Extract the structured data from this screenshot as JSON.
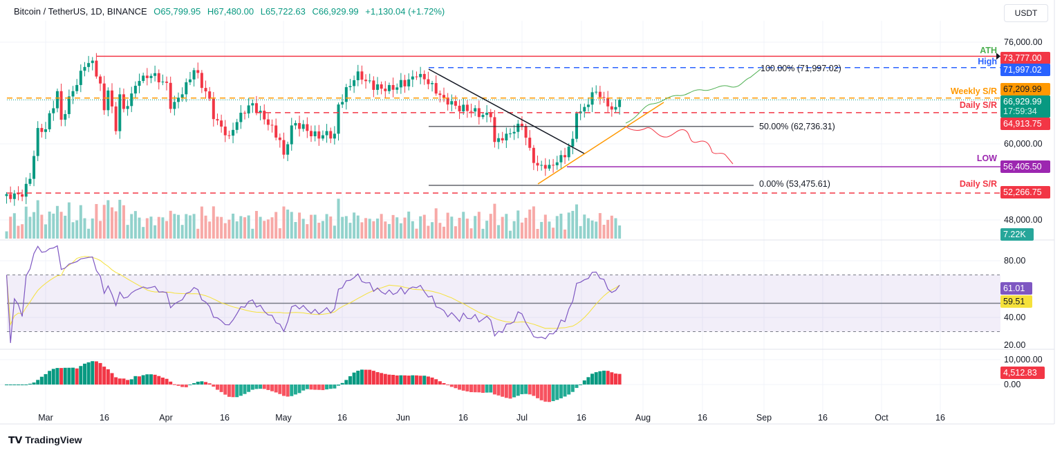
{
  "header": {
    "symbol": "Bitcoin / TetherUS, 1D, BINANCE",
    "open": "O65,799.95",
    "high": "H67,480.00",
    "low": "L65,722.63",
    "close": "C66,929.99",
    "change": "+1,130.04 (+1.72%)"
  },
  "currency_button": "USDT",
  "price_axis": {
    "ticks": [
      "76,000.00",
      "60,000.00",
      "48,000.00"
    ],
    "tags": [
      {
        "text": "73,777.00",
        "color": "#f23645"
      },
      {
        "text": "71,997.02",
        "color": "#2962ff"
      },
      {
        "text": "67,209.99",
        "color": "#ff9800"
      },
      {
        "text": "66,929.99",
        "color": "#089981",
        "sub": "17:59:34"
      },
      {
        "text": "64,913.75",
        "color": "#f23645"
      },
      {
        "text": "56,405.50",
        "color": "#9c27b0"
      },
      {
        "text": "52,266.75",
        "color": "#f23645"
      },
      {
        "text": "7.22K",
        "color": "#26a69a"
      }
    ]
  },
  "level_labels": {
    "ath": "ATH",
    "high": "High",
    "weekly": "Weekly S/R",
    "daily1": "Daily S/R",
    "low": "LOW",
    "daily2": "Daily S/R"
  },
  "fib_labels": {
    "f100": "100.00% (71,997.02)",
    "f50": "50.00% (62,736.31)",
    "f0": "0.00% (53,475.61)"
  },
  "rsi_axis": {
    "ticks": [
      "80.00",
      "40.00",
      "20.00"
    ],
    "rsi": "61.01",
    "rsi_ma": "59.51",
    "rsi_color": "#7e57c2",
    "ma_color": "#f5e13b"
  },
  "osc_axis": {
    "ticks": [
      "10,000.00",
      "0.00"
    ],
    "value": "4,512.83"
  },
  "time_axis": [
    "Mar",
    "16",
    "Apr",
    "16",
    "May",
    "16",
    "Jun",
    "16",
    "Jul",
    "16",
    "Aug",
    "16",
    "Sep",
    "16",
    "Oct",
    "16"
  ],
  "brand": "TradingView",
  "colors": {
    "up": "#089981",
    "down": "#f23645"
  },
  "chart_data": {
    "type": "candlestick",
    "symbol": "BTCUSDT",
    "interval": "1D",
    "ylim": [
      46000,
      78000
    ],
    "key_closes": [
      [
        "2024-02-20",
        52100
      ],
      [
        "2024-02-24",
        51700
      ],
      [
        "2024-02-26",
        54500
      ],
      [
        "2024-02-28",
        62500
      ],
      [
        "2024-03-01",
        62300
      ],
      [
        "2024-03-04",
        68300
      ],
      [
        "2024-03-05",
        63800
      ],
      [
        "2024-03-08",
        68300
      ],
      [
        "2024-03-11",
        72100
      ],
      [
        "2024-03-13",
        73100
      ],
      [
        "2024-03-15",
        69500
      ],
      [
        "2024-03-16",
        65300
      ],
      [
        "2024-03-17",
        68400
      ],
      [
        "2024-03-19",
        62000
      ],
      [
        "2024-03-20",
        67800
      ],
      [
        "2024-03-21",
        65500
      ],
      [
        "2024-03-25",
        69900
      ],
      [
        "2024-03-28",
        70700
      ],
      [
        "2024-04-01",
        69600
      ],
      [
        "2024-04-02",
        65500
      ],
      [
        "2024-04-05",
        67800
      ],
      [
        "2024-04-08",
        71600
      ],
      [
        "2024-04-12",
        67100
      ],
      [
        "2024-04-13",
        63900
      ],
      [
        "2024-04-17",
        61300
      ],
      [
        "2024-04-20",
        64900
      ],
      [
        "2024-04-23",
        66400
      ],
      [
        "2024-04-27",
        63000
      ],
      [
        "2024-04-30",
        60600
      ],
      [
        "2024-05-01",
        58300
      ],
      [
        "2024-05-03",
        62900
      ],
      [
        "2024-05-06",
        63100
      ],
      [
        "2024-05-08",
        61200
      ],
      [
        "2024-05-14",
        61600
      ],
      [
        "2024-05-15",
        66200
      ],
      [
        "2024-05-20",
        71400
      ],
      [
        "2024-05-21",
        70100
      ],
      [
        "2024-05-27",
        68300
      ],
      [
        "2024-06-04",
        70500
      ],
      [
        "2024-06-05",
        71000
      ],
      [
        "2024-06-07",
        69400
      ],
      [
        "2024-06-11",
        67300
      ],
      [
        "2024-06-14",
        66000
      ],
      [
        "2024-06-18",
        65100
      ],
      [
        "2024-06-23",
        64200
      ],
      [
        "2024-06-24",
        60300
      ],
      [
        "2024-06-27",
        61600
      ],
      [
        "2024-07-01",
        62800
      ],
      [
        "2024-07-04",
        57000
      ],
      [
        "2024-07-05",
        56600
      ],
      [
        "2024-07-08",
        56700
      ],
      [
        "2024-07-12",
        57900
      ],
      [
        "2024-07-14",
        60800
      ],
      [
        "2024-07-15",
        64800
      ],
      [
        "2024-07-16",
        65100
      ],
      [
        "2024-07-20",
        68200
      ],
      [
        "2024-07-23",
        65900
      ],
      [
        "2024-07-24",
        65400
      ],
      [
        "2024-07-25",
        65800
      ],
      [
        "2024-07-26",
        66930
      ]
    ],
    "levels": {
      "ath": 73777.0,
      "high": 71997.02,
      "weekly_sr": 67209.99,
      "daily_sr_upper": 64913.75,
      "low": 56405.5,
      "daily_sr_lower": 52266.75
    },
    "fibonacci": {
      "100": 71997.02,
      "50": 62736.31,
      "0": 53475.61
    },
    "last": {
      "open": 65799.95,
      "high": 67480.0,
      "low": 65722.63,
      "close": 66929.99,
      "volume": "7.22K",
      "rsi": 61.01,
      "rsi_ma": 59.51,
      "oscillator": 4512.83
    },
    "rsi_bands": [
      30,
      50,
      70
    ]
  }
}
